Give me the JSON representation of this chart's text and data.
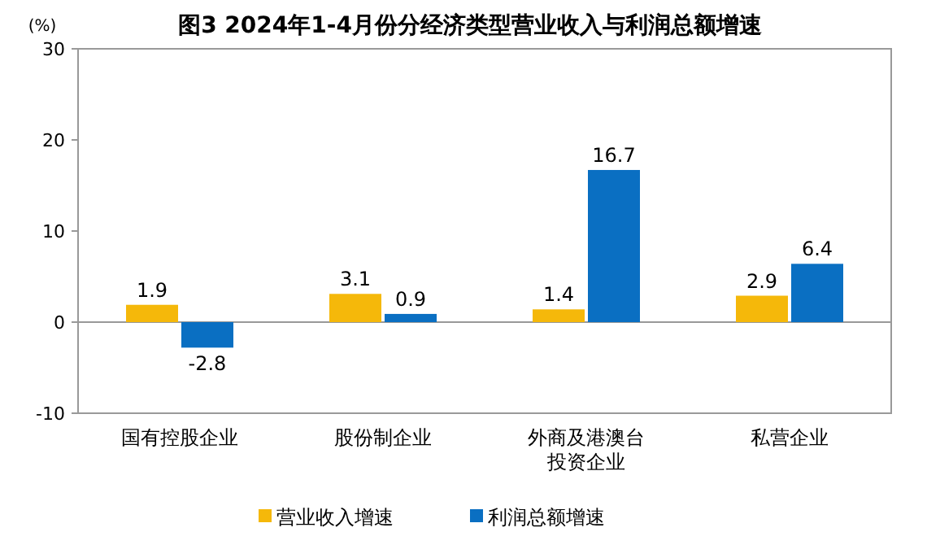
{
  "chart_data": {
    "type": "bar",
    "title": "图3  2024年1-4月份分经济类型营业收入与利润总额增速",
    "ylabel": "(%)",
    "categories": [
      "国有控股企业",
      "股份制企业",
      "外商及港澳台投资企业",
      "私营企业"
    ],
    "series": [
      {
        "name": "营业收入增速",
        "color": "#f5b80a",
        "values": [
          1.9,
          3.1,
          1.4,
          2.9
        ]
      },
      {
        "name": "利润总额增速",
        "color": "#0a6fc2",
        "values": [
          -2.8,
          0.9,
          16.7,
          6.4
        ]
      }
    ],
    "ylim": [
      -10,
      30
    ],
    "yticks": [
      -10,
      0,
      10,
      20,
      30
    ],
    "data_labels": true,
    "legend": "bottom"
  }
}
